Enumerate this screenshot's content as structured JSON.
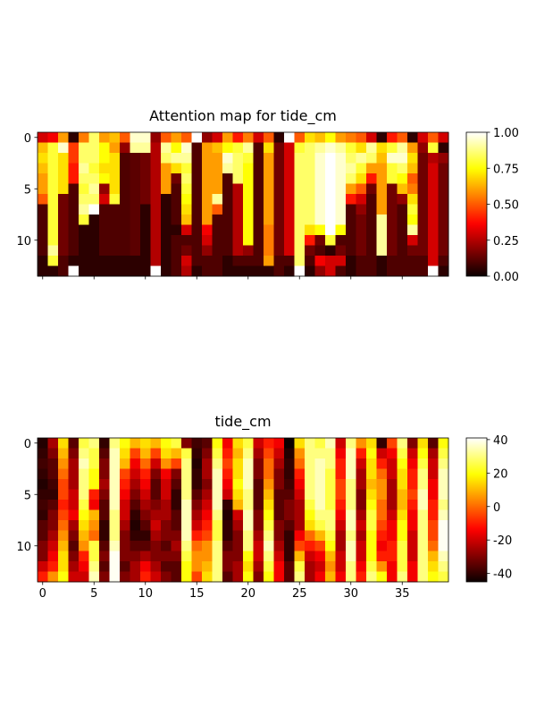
{
  "chart_data": [
    {
      "type": "heatmap",
      "title": "Attention map for tide_cm",
      "colormap": "hot",
      "xlim": [
        -0.5,
        39.5
      ],
      "ylim": [
        13.5,
        -0.5
      ],
      "xticks": [
        0,
        5,
        10,
        15,
        20,
        25,
        30,
        35
      ],
      "yticks": [
        0,
        5,
        10
      ],
      "show_xtick_labels": false,
      "clim": [
        0,
        1
      ],
      "cticks": [
        {
          "value": 0,
          "label": "0.00"
        },
        {
          "value": 0.25,
          "label": "0.25"
        },
        {
          "value": 0.5,
          "label": "0.50"
        },
        {
          "value": 0.75,
          "label": "0.75"
        },
        {
          "value": 1,
          "label": "1.00"
        }
      ],
      "z": [
        [
          0.3,
          0.35,
          0.6,
          0.05,
          0.55,
          0.85,
          0.6,
          0.65,
          0.5,
          0.95,
          0.95,
          0.2,
          0.5,
          0.6,
          0.5,
          1,
          0.2,
          0.3,
          0.6,
          0.4,
          0.55,
          0.3,
          0.5,
          0.05,
          1,
          0.5,
          0.7,
          0.65,
          0.75,
          0.6,
          0.55,
          0.5,
          0.3,
          0.05,
          0.4,
          0.5,
          0.05,
          0.3,
          0.5,
          0.3
        ],
        [
          0.65,
          0.8,
          0.95,
          0.45,
          0.85,
          0.85,
          0.75,
          0.6,
          0.2,
          0.9,
          0.9,
          0.25,
          0.9,
          0.75,
          0.95,
          0.1,
          0.6,
          0.65,
          0.75,
          0.8,
          0.9,
          0.1,
          0.7,
          0.15,
          0.3,
          0.8,
          0.85,
          0.9,
          0.95,
          0.9,
          0.8,
          0.7,
          0.9,
          0.7,
          0.8,
          0.9,
          0.6,
          0.2,
          0.8,
          0.05
        ],
        [
          0.7,
          0.8,
          0.7,
          0.45,
          0.85,
          0.85,
          0.75,
          0.7,
          0.1,
          0.12,
          0.15,
          0.25,
          0.85,
          0.9,
          0.9,
          0.1,
          0.6,
          0.6,
          0.95,
          0.85,
          0.8,
          0.1,
          0.6,
          0.15,
          0.3,
          0.85,
          0.85,
          0.95,
          1,
          0.95,
          0.85,
          0.9,
          0.85,
          0.65,
          0.95,
          0.95,
          0.7,
          0.15,
          0.25,
          0.2
        ],
        [
          0.65,
          0.8,
          0.7,
          0.4,
          0.9,
          0.8,
          0.7,
          0.7,
          0.1,
          0.12,
          0.15,
          0.25,
          0.6,
          0.7,
          0.8,
          0.1,
          0.6,
          0.6,
          0.9,
          0.85,
          0.75,
          0.1,
          0.6,
          0.15,
          0.3,
          0.85,
          0.85,
          0.95,
          1,
          0.95,
          0.9,
          0.8,
          0.6,
          0.6,
          0.8,
          0.85,
          0.65,
          0.15,
          0.3,
          0.15
        ],
        [
          0.6,
          0.8,
          0.7,
          0.4,
          0.85,
          0.85,
          0.75,
          0.7,
          0.1,
          0.12,
          0.15,
          0.25,
          0.6,
          0.15,
          0.85,
          0.1,
          0.6,
          0.6,
          0.1,
          0.85,
          0.75,
          0.1,
          0.6,
          0.15,
          0.3,
          0.85,
          0.85,
          0.95,
          1,
          0.95,
          0.85,
          0.7,
          0.4,
          0.6,
          0.8,
          0.75,
          0.5,
          0.15,
          0.3,
          0.15
        ],
        [
          0.6,
          0.8,
          0.7,
          0.1,
          0.8,
          0.9,
          0.2,
          0.7,
          0.1,
          0.12,
          0.15,
          0.25,
          0.6,
          0.1,
          0.8,
          0.1,
          0.6,
          0.6,
          0.1,
          0.25,
          0.75,
          0.1,
          0.6,
          0.15,
          0.3,
          0.85,
          0.85,
          0.95,
          1,
          0.95,
          0.6,
          0.5,
          0.15,
          0.6,
          0.15,
          0.65,
          0.55,
          0.15,
          0.3,
          0.15
        ],
        [
          0.5,
          0.8,
          0.15,
          0.1,
          0.85,
          0.85,
          0.3,
          0.8,
          0.1,
          0.12,
          0.15,
          0.25,
          0.05,
          0.1,
          0.75,
          0.1,
          0.6,
          0.9,
          0.1,
          0.25,
          0.75,
          0.1,
          0.6,
          0.15,
          0.3,
          0.85,
          0.85,
          0.95,
          1,
          0.95,
          0.4,
          0.3,
          0.1,
          0.6,
          0.15,
          0.2,
          0.7,
          0.15,
          0.3,
          0.15
        ],
        [
          0.1,
          0.8,
          0.15,
          0.1,
          0.9,
          1,
          0.1,
          0.1,
          0.1,
          0.12,
          0.05,
          0.25,
          0.05,
          0.1,
          0.7,
          0.1,
          0.6,
          0.5,
          0.1,
          0.25,
          0.75,
          0.1,
          0.6,
          0.15,
          0.3,
          0.85,
          0.85,
          0.95,
          1,
          0.95,
          0.1,
          0.2,
          0.1,
          0.6,
          0.15,
          0.1,
          0.8,
          0.15,
          0.3,
          0.15
        ],
        [
          0.1,
          0.8,
          0.15,
          0.1,
          0.8,
          0.05,
          0.1,
          0.1,
          0.1,
          0.12,
          0.05,
          0.25,
          0.05,
          0.1,
          0.65,
          0.1,
          0.6,
          0.1,
          0.1,
          0.25,
          0.75,
          0.1,
          0.6,
          0.15,
          0.3,
          0.85,
          0.85,
          0.95,
          1,
          0.95,
          0.1,
          0.15,
          0.1,
          0.9,
          0.15,
          0.1,
          0.75,
          0.15,
          0.3,
          0.15
        ],
        [
          0.1,
          0.8,
          0.15,
          0.1,
          0.05,
          0.05,
          0.1,
          0.1,
          0.1,
          0.12,
          0.05,
          0.25,
          0.05,
          0.05,
          0.3,
          0.1,
          0.35,
          0.1,
          0.1,
          0.25,
          0.75,
          0.1,
          0.55,
          0.15,
          0.3,
          0.85,
          0.7,
          0.75,
          1,
          0.75,
          0.1,
          0.15,
          0.1,
          0.9,
          0.15,
          0.1,
          0.9,
          0.15,
          0.3,
          0.15
        ],
        [
          0.1,
          0.8,
          0.15,
          0.1,
          0.05,
          0.05,
          0.1,
          0.1,
          0.1,
          0.12,
          0.05,
          0.25,
          0.05,
          0.1,
          0.1,
          0.1,
          0.3,
          0.1,
          0.1,
          0.25,
          0.75,
          0.1,
          0.55,
          0.15,
          0.3,
          0.85,
          0.4,
          0.15,
          0.8,
          0.1,
          0.1,
          0.15,
          0.1,
          0.9,
          0.15,
          0.1,
          0.3,
          0.15,
          0.3,
          0.15
        ],
        [
          0.1,
          0.9,
          0.15,
          0.1,
          0.05,
          0.05,
          0.1,
          0.1,
          0.1,
          0.12,
          0.05,
          0.25,
          0.05,
          0.1,
          0.15,
          0.1,
          0.2,
          0.1,
          0.1,
          0.25,
          0.2,
          0.1,
          0.55,
          0.15,
          0.3,
          0.85,
          0.15,
          0.1,
          0.05,
          0.15,
          0.1,
          0.15,
          0.1,
          0.9,
          0.15,
          0.1,
          0.15,
          0.15,
          0.3,
          0.15
        ],
        [
          0.05,
          0.8,
          0.1,
          0.05,
          0.05,
          0.05,
          0.05,
          0.05,
          0.05,
          0.05,
          0.05,
          0.25,
          0.05,
          0.1,
          0.3,
          0.1,
          0.1,
          0.1,
          0.05,
          0.1,
          0.1,
          0.1,
          0.6,
          0.1,
          0.1,
          0.85,
          0.1,
          0.35,
          0.3,
          0.3,
          0.05,
          0.1,
          0.1,
          0.05,
          0.1,
          0.1,
          0.1,
          0.1,
          0.3,
          0.1
        ],
        [
          0.05,
          0.05,
          0.1,
          1,
          0.05,
          0.05,
          0.05,
          0.05,
          0.05,
          0.05,
          0.05,
          1,
          0.05,
          0.1,
          0.25,
          0.05,
          0.1,
          0.1,
          0.05,
          0.05,
          0.05,
          0.05,
          0.05,
          0.1,
          0.05,
          1,
          0.05,
          0.2,
          0.3,
          0.1,
          0.05,
          0.1,
          0.1,
          0.05,
          0.1,
          0.1,
          0.1,
          0.1,
          1,
          0.05
        ]
      ]
    },
    {
      "type": "heatmap",
      "title": "tide_cm",
      "colormap": "hot",
      "xlim": [
        -0.5,
        39.5
      ],
      "ylim": [
        13.5,
        -0.5
      ],
      "xticks": [
        0,
        5,
        10,
        15,
        20,
        25,
        30,
        35
      ],
      "yticks": [
        0,
        5,
        10
      ],
      "show_xtick_labels": true,
      "clim": [
        -45,
        41
      ],
      "cticks": [
        -40,
        -20,
        0,
        20,
        40
      ],
      "z": [
        [
          -42,
          -25,
          15,
          -35,
          25,
          30,
          -40,
          30,
          20,
          10,
          15,
          10,
          20,
          25,
          -30,
          -38,
          -35,
          20,
          -15,
          15,
          25,
          -20,
          -10,
          -15,
          -45,
          15,
          30,
          25,
          35,
          -20,
          30,
          5,
          15,
          -40,
          -5,
          30,
          -30,
          15,
          -35,
          20
        ],
        [
          -40,
          -30,
          10,
          -30,
          30,
          25,
          -35,
          35,
          15,
          -5,
          10,
          -5,
          15,
          10,
          25,
          -40,
          -30,
          25,
          -10,
          10,
          30,
          -25,
          -5,
          -20,
          -42,
          5,
          30,
          30,
          30,
          -15,
          35,
          -10,
          20,
          -20,
          -15,
          25,
          -20,
          20,
          -25,
          25
        ],
        [
          -38,
          -35,
          5,
          -25,
          35,
          25,
          -30,
          35,
          10,
          -15,
          0,
          -20,
          5,
          -5,
          30,
          -42,
          -25,
          30,
          -5,
          15,
          35,
          -30,
          0,
          -25,
          -40,
          0,
          30,
          35,
          30,
          -10,
          35,
          -20,
          15,
          -10,
          -20,
          20,
          -15,
          25,
          -20,
          30
        ],
        [
          -40,
          -35,
          0,
          -25,
          30,
          20,
          -30,
          35,
          -5,
          -20,
          -10,
          -30,
          -15,
          -30,
          30,
          -40,
          -25,
          35,
          -10,
          15,
          35,
          -30,
          0,
          -30,
          -40,
          -10,
          30,
          35,
          25,
          -10,
          35,
          -25,
          15,
          0,
          -20,
          15,
          -10,
          30,
          -20,
          35
        ],
        [
          -42,
          -38,
          -5,
          -25,
          30,
          20,
          -25,
          35,
          -10,
          -25,
          -15,
          -35,
          -20,
          -35,
          30,
          -40,
          -30,
          35,
          -15,
          20,
          35,
          -35,
          5,
          -30,
          -38,
          -15,
          30,
          35,
          25,
          -5,
          30,
          -25,
          10,
          5,
          -25,
          15,
          -10,
          30,
          -15,
          35
        ],
        [
          -40,
          -40,
          -5,
          -20,
          30,
          -10,
          -30,
          35,
          -15,
          -30,
          -20,
          -35,
          -20,
          -40,
          30,
          -35,
          -25,
          35,
          -20,
          15,
          30,
          -35,
          10,
          -35,
          -35,
          -20,
          30,
          35,
          25,
          -5,
          30,
          -30,
          15,
          5,
          -25,
          10,
          -5,
          35,
          -15,
          35
        ],
        [
          -38,
          -35,
          -10,
          -20,
          25,
          -15,
          -35,
          35,
          -20,
          -35,
          -25,
          -30,
          -25,
          -40,
          35,
          -30,
          -20,
          35,
          -40,
          10,
          30,
          -35,
          15,
          -35,
          -30,
          -25,
          25,
          35,
          25,
          -10,
          30,
          -30,
          20,
          0,
          -25,
          10,
          -10,
          35,
          -10,
          30
        ],
        [
          -40,
          -30,
          -5,
          -15,
          20,
          10,
          -35,
          30,
          -20,
          -40,
          -30,
          -25,
          -25,
          -35,
          35,
          -25,
          -15,
          30,
          -42,
          -20,
          35,
          -30,
          20,
          -35,
          -30,
          -25,
          20,
          30,
          30,
          -15,
          35,
          -25,
          25,
          0,
          -20,
          15,
          -15,
          30,
          -10,
          35
        ],
        [
          -35,
          -30,
          0,
          -25,
          15,
          5,
          -40,
          30,
          -25,
          -42,
          -35,
          -20,
          -30,
          -35,
          35,
          -20,
          -10,
          25,
          -40,
          -25,
          35,
          -30,
          25,
          -30,
          -35,
          -25,
          15,
          25,
          30,
          -20,
          35,
          -20,
          25,
          -5,
          -15,
          20,
          -15,
          30,
          -5,
          40
        ],
        [
          -35,
          -25,
          5,
          -30,
          10,
          0,
          -40,
          30,
          -30,
          -40,
          -40,
          -25,
          -30,
          -30,
          35,
          -10,
          -5,
          25,
          -40,
          -30,
          30,
          -25,
          30,
          -30,
          -40,
          -15,
          0,
          10,
          25,
          -25,
          30,
          -25,
          20,
          -10,
          -15,
          20,
          -20,
          30,
          -5,
          40
        ],
        [
          -30,
          -20,
          10,
          -35,
          5,
          25,
          -35,
          35,
          -30,
          -35,
          -35,
          -30,
          -35,
          -25,
          30,
          0,
          5,
          30,
          -35,
          -30,
          30,
          -20,
          35,
          -25,
          -40,
          -5,
          -10,
          -5,
          20,
          -25,
          35,
          -20,
          20,
          -15,
          -10,
          25,
          -20,
          30,
          0,
          40
        ],
        [
          -30,
          -15,
          15,
          -30,
          -10,
          25,
          -30,
          40,
          -30,
          -30,
          -25,
          -30,
          -30,
          -30,
          25,
          5,
          5,
          30,
          -30,
          -30,
          20,
          -20,
          30,
          -20,
          -40,
          10,
          -20,
          -15,
          10,
          -20,
          35,
          -20,
          20,
          -10,
          -10,
          25,
          -20,
          30,
          10,
          35
        ],
        [
          -20,
          -10,
          15,
          -25,
          -15,
          30,
          -35,
          40,
          -35,
          -25,
          -15,
          -25,
          -35,
          -35,
          20,
          5,
          10,
          30,
          -30,
          -25,
          15,
          -25,
          25,
          -15,
          -35,
          25,
          -25,
          -20,
          5,
          -20,
          30,
          -15,
          25,
          5,
          -15,
          25,
          -15,
          30,
          15,
          30
        ],
        [
          -10,
          5,
          20,
          -20,
          -20,
          35,
          -30,
          40,
          -30,
          -25,
          -10,
          -20,
          -30,
          -35,
          20,
          -5,
          15,
          30,
          -35,
          -25,
          20,
          -30,
          20,
          -15,
          -35,
          30,
          -25,
          -15,
          10,
          -15,
          30,
          -10,
          30,
          20,
          -15,
          30,
          -15,
          30,
          20,
          25
        ]
      ]
    }
  ]
}
